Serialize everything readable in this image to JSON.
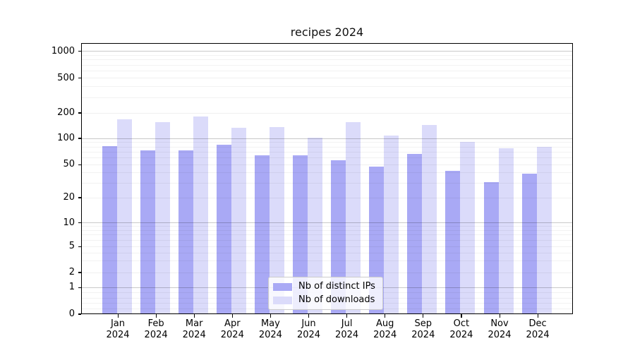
{
  "title": "recipes 2024",
  "chart_data": {
    "type": "bar",
    "title": "recipes 2024",
    "xlabel": "",
    "ylabel": "",
    "yscale": "symlog",
    "grid": true,
    "ylim": [
      0,
      1250
    ],
    "yticks": [
      0,
      1,
      2,
      5,
      10,
      20,
      50,
      100,
      200,
      500,
      1000
    ],
    "x_tick_top_labels": [
      "Jan",
      "Feb",
      "Mar",
      "Apr",
      "May",
      "Jun",
      "Jul",
      "Aug",
      "Sep",
      "Oct",
      "Nov",
      "Dec"
    ],
    "x_tick_bottom_label": "2024",
    "categories": [
      "Jan 2024",
      "Feb 2024",
      "Mar 2024",
      "Apr 2024",
      "May 2024",
      "Jun 2024",
      "Jul 2024",
      "Aug 2024",
      "Sep 2024",
      "Oct 2024",
      "Nov 2024",
      "Dec 2024"
    ],
    "series": [
      {
        "name": "Nb of distinct IPs",
        "color": "#a9a9f5",
        "values": [
          81,
          73,
          73,
          84,
          64,
          64,
          56,
          47,
          66,
          42,
          31,
          39
        ]
      },
      {
        "name": "Nb of downloads",
        "color": "#dbdbfa",
        "values": [
          168,
          156,
          181,
          134,
          137,
          101,
          156,
          107,
          144,
          91,
          77,
          80
        ]
      }
    ],
    "legend_position": "lower center, inside plot"
  },
  "colors": {
    "bar_distinct_ips": "#a9a9f5",
    "bar_downloads": "#dbdbfa",
    "grid_major": "#c9c9c9",
    "grid_minor": "#f0f0f0",
    "spine": "#000000",
    "text": "#111111",
    "legend_border": "#cccccc",
    "legend_background": "#ffffff"
  }
}
